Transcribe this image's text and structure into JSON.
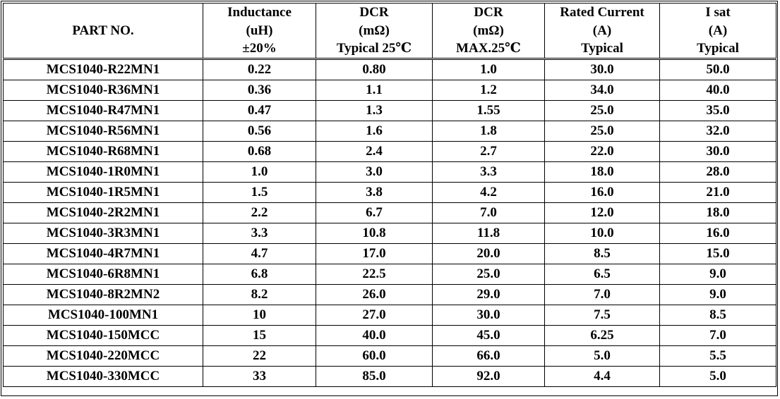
{
  "table": {
    "headers": [
      [
        "PART NO."
      ],
      [
        "Inductance",
        "(uH)",
        "±20%"
      ],
      [
        "DCR",
        "(mΩ)",
        "Typical 25℃"
      ],
      [
        "DCR",
        "(mΩ)",
        "MAX.25℃"
      ],
      [
        "Rated Current",
        "(A)",
        "Typical"
      ],
      [
        "I sat",
        "(A)",
        "Typical"
      ]
    ],
    "rows": [
      [
        "MCS1040-R22MN1",
        "0.22",
        "0.80",
        "1.0",
        "30.0",
        "50.0"
      ],
      [
        "MCS1040-R36MN1",
        "0.36",
        "1.1",
        "1.2",
        "34.0",
        "40.0"
      ],
      [
        "MCS1040-R47MN1",
        "0.47",
        "1.3",
        "1.55",
        "25.0",
        "35.0"
      ],
      [
        "MCS1040-R56MN1",
        "0.56",
        "1.6",
        "1.8",
        "25.0",
        "32.0"
      ],
      [
        "MCS1040-R68MN1",
        "0.68",
        "2.4",
        "2.7",
        "22.0",
        "30.0"
      ],
      [
        "MCS1040-1R0MN1",
        "1.0",
        "3.0",
        "3.3",
        "18.0",
        "28.0"
      ],
      [
        "MCS1040-1R5MN1",
        "1.5",
        "3.8",
        "4.2",
        "16.0",
        "21.0"
      ],
      [
        "MCS1040-2R2MN1",
        "2.2",
        "6.7",
        "7.0",
        "12.0",
        "18.0"
      ],
      [
        "MCS1040-3R3MN1",
        "3.3",
        "10.8",
        "11.8",
        "10.0",
        "16.0"
      ],
      [
        "MCS1040-4R7MN1",
        "4.7",
        "17.0",
        "20.0",
        "8.5",
        "15.0"
      ],
      [
        "MCS1040-6R8MN1",
        "6.8",
        "22.5",
        "25.0",
        "6.5",
        "9.0"
      ],
      [
        "MCS1040-8R2MN2",
        "8.2",
        "26.0",
        "29.0",
        "7.0",
        "9.0"
      ],
      [
        "MCS1040-100MN1",
        "10",
        "27.0",
        "30.0",
        "7.5",
        "8.5"
      ],
      [
        "MCS1040-150MCC",
        "15",
        "40.0",
        "45.0",
        "6.25",
        "7.0"
      ],
      [
        "MCS1040-220MCC",
        "22",
        "60.0",
        "66.0",
        "5.0",
        "5.5"
      ],
      [
        "MCS1040-330MCC",
        "33",
        "85.0",
        "92.0",
        "4.4",
        "5.0"
      ]
    ]
  }
}
